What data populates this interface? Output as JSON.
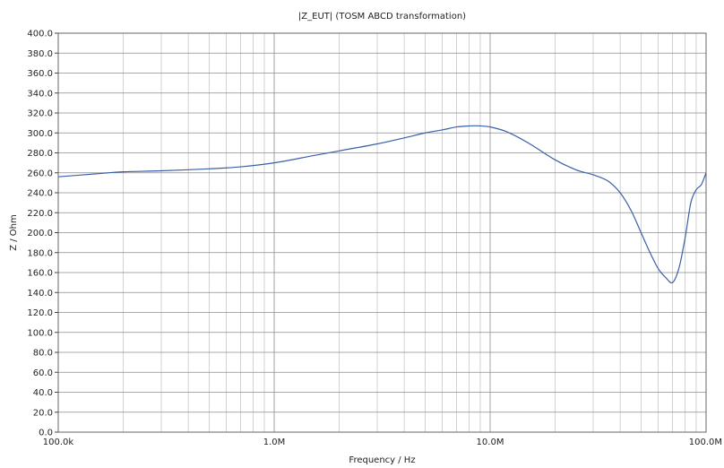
{
  "chart_data": {
    "type": "line",
    "title": "|Z_EUT| (TOSM ABCD transformation)",
    "xlabel": "Frequency / Hz",
    "ylabel": "Z / Ohm",
    "xscale": "log",
    "xlim": [
      100000,
      100000000
    ],
    "ylim": [
      0,
      400
    ],
    "grid": true,
    "line_color": "#3a5fa8",
    "xticks": [
      {
        "value": 100000,
        "label": "100.0k"
      },
      {
        "value": 1000000,
        "label": "1.0M"
      },
      {
        "value": 10000000,
        "label": "10.0M"
      },
      {
        "value": 100000000,
        "label": "100.0M"
      }
    ],
    "yticks": [
      {
        "value": 0,
        "label": "0.0"
      },
      {
        "value": 20,
        "label": "20.0"
      },
      {
        "value": 40,
        "label": "40.0"
      },
      {
        "value": 60,
        "label": "60.0"
      },
      {
        "value": 80,
        "label": "80.0"
      },
      {
        "value": 100,
        "label": "100.0"
      },
      {
        "value": 120,
        "label": "120.0"
      },
      {
        "value": 140,
        "label": "140.0"
      },
      {
        "value": 160,
        "label": "160.0"
      },
      {
        "value": 180,
        "label": "180.0"
      },
      {
        "value": 200,
        "label": "200.0"
      },
      {
        "value": 220,
        "label": "220.0"
      },
      {
        "value": 240,
        "label": "240.0"
      },
      {
        "value": 260,
        "label": "260.0"
      },
      {
        "value": 280,
        "label": "280.0"
      },
      {
        "value": 300,
        "label": "300.0"
      },
      {
        "value": 320,
        "label": "320.0"
      },
      {
        "value": 340,
        "label": "340.0"
      },
      {
        "value": 360,
        "label": "360.0"
      },
      {
        "value": 380,
        "label": "380.0"
      },
      {
        "value": 400,
        "label": "400.0"
      }
    ],
    "series": [
      {
        "x": [
          100000,
          150000,
          200000,
          300000,
          500000,
          700000,
          1000000,
          1500000,
          2000000,
          3000000,
          4000000,
          5000000,
          6000000,
          7000000,
          8000000,
          9000000,
          10000000,
          12000000,
          15000000,
          20000000,
          25000000,
          30000000,
          35000000,
          40000000,
          45000000,
          50000000,
          55000000,
          60000000,
          65000000,
          70000000,
          75000000,
          80000000,
          85000000,
          90000000,
          95000000,
          100000000
        ],
        "y": [
          256,
          259,
          261,
          262,
          264,
          266,
          270,
          277,
          282,
          289,
          295,
          300,
          303,
          306,
          307,
          307,
          306,
          301,
          290,
          273,
          263,
          258,
          252,
          240,
          222,
          200,
          180,
          164,
          155,
          150,
          165,
          195,
          230,
          243,
          248,
          260
        ]
      }
    ]
  }
}
